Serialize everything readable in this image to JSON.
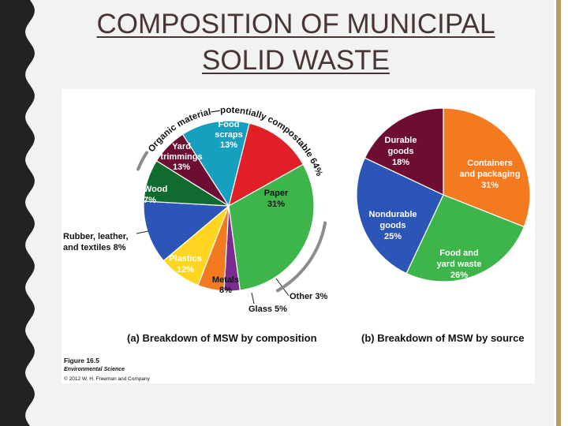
{
  "slide": {
    "title_line1": "COMPOSITION OF MUNICIPAL",
    "title_line2": "SOLID WASTE"
  },
  "colors": {
    "food": "#e11f26",
    "paper": "#3db54a",
    "other": "#7b2c8f",
    "glass": "#f47a20",
    "metals": "#ffd51f",
    "plastics": "#2b55b6",
    "rubber": "#0f6b2e",
    "wood": "#6d0d34",
    "yard": "#16a0c0",
    "durable": "#6d0d34",
    "containers": "#f47a20",
    "foodyard": "#3db54a",
    "nondurable": "#2b55b6",
    "left_strip": "#222222",
    "accent_bar": "#b89a64"
  },
  "figure": {
    "caption_label": "Figure 16.5",
    "caption_book": "Environmental Science",
    "caption_copyright": "© 2012 W. H. Freeman and Company",
    "arc_label": "Organic material—potentially compostable 64%"
  },
  "chart_data": [
    {
      "type": "pie",
      "title": "(a) Breakdown of MSW by composition",
      "unit": "%",
      "slices": [
        {
          "name": "Food scraps",
          "lines": [
            "Food",
            "scraps",
            "13%"
          ],
          "value": 13,
          "color_key": "food"
        },
        {
          "name": "Paper",
          "lines": [
            "Paper",
            "31%"
          ],
          "value": 31,
          "color_key": "paper"
        },
        {
          "name": "Other",
          "lines": [
            "Other 3%"
          ],
          "value": 3,
          "color_key": "other"
        },
        {
          "name": "Glass",
          "lines": [
            "Glass 5%"
          ],
          "value": 5,
          "color_key": "glass"
        },
        {
          "name": "Metals",
          "lines": [
            "Metals",
            "8%"
          ],
          "value": 8,
          "color_key": "metals"
        },
        {
          "name": "Plastics",
          "lines": [
            "Plastics",
            "12%"
          ],
          "value": 12,
          "color_key": "plastics"
        },
        {
          "name": "Rubber, leather, and textiles",
          "lines": [
            "Rubber, leather,",
            "and textiles 8%"
          ],
          "value": 8,
          "color_key": "rubber"
        },
        {
          "name": "Wood",
          "lines": [
            "Wood",
            "7%"
          ],
          "value": 7,
          "color_key": "wood"
        },
        {
          "name": "Yard trimmings",
          "lines": [
            "Yard",
            "trimmings",
            "13%"
          ],
          "value": 13,
          "color_key": "yard"
        }
      ]
    },
    {
      "type": "pie",
      "title": "(b) Breakdown of MSW by source",
      "unit": "%",
      "slices": [
        {
          "name": "Containers and packaging",
          "lines": [
            "Containers",
            "and packaging",
            "31%"
          ],
          "value": 31,
          "color_key": "containers"
        },
        {
          "name": "Food and yard waste",
          "lines": [
            "Food and",
            "yard waste",
            "26%"
          ],
          "value": 26,
          "color_key": "foodyard"
        },
        {
          "name": "Nondurable goods",
          "lines": [
            "Nondurable",
            "goods",
            "25%"
          ],
          "value": 25,
          "color_key": "nondurable"
        },
        {
          "name": "Durable goods",
          "lines": [
            "Durable",
            "goods",
            "18%"
          ],
          "value": 18,
          "color_key": "durable"
        }
      ]
    }
  ]
}
